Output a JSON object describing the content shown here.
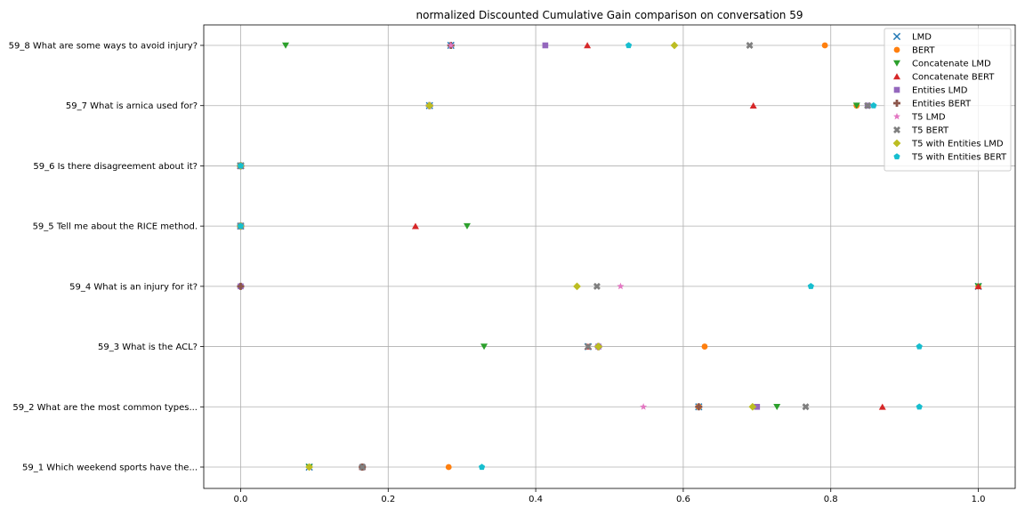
{
  "chart_data": {
    "type": "scatter",
    "title": "normalized Discounted Cumulative Gain comparison on conversation 59",
    "xlabel": "",
    "ylabel": "",
    "xlim": [
      -0.05,
      1.05
    ],
    "xticks": [
      0.0,
      0.2,
      0.4,
      0.6,
      0.8,
      1.0
    ],
    "xtick_labels": [
      "0.0",
      "0.2",
      "0.4",
      "0.6",
      "0.8",
      "1.0"
    ],
    "grid": true,
    "legend_position": "top-right",
    "categories": [
      "59_1 Which weekend sports have the...",
      "59_2 What are the most common types...",
      "59_3 What is the ACL?",
      "59_4 What is an injury for it?",
      "59_5 Tell me about the RICE method.",
      "59_6 Is there disagreement about it?",
      "59_7 What is arnica used for?",
      "59_8 What are some ways to avoid injury?"
    ],
    "series": [
      {
        "name": "LMD",
        "marker": "x",
        "color": "#1f77b4",
        "values": [
          0.093,
          0.621,
          0.471,
          1.0,
          0.0,
          0.0,
          0.256,
          0.285
        ]
      },
      {
        "name": "BERT",
        "marker": "circle",
        "color": "#ff7f0e",
        "values": [
          0.282,
          0.621,
          0.629,
          1.0,
          0.0,
          0.0,
          0.835,
          0.792
        ]
      },
      {
        "name": "Concatenate LMD",
        "marker": "triangle-down",
        "color": "#2ca02c",
        "values": [
          0.093,
          0.727,
          0.33,
          1.0,
          0.307,
          0.0,
          0.835,
          0.061
        ]
      },
      {
        "name": "Concatenate BERT",
        "marker": "triangle-up",
        "color": "#d62728",
        "values": [
          0.165,
          0.87,
          0.471,
          1.0,
          0.237,
          0.0,
          0.695,
          0.47
        ]
      },
      {
        "name": "Entities LMD",
        "marker": "square",
        "color": "#9467bd",
        "values": [
          0.165,
          0.7,
          0.485,
          0.0,
          0.0,
          0.0,
          0.85,
          0.413
        ]
      },
      {
        "name": "Entities BERT",
        "marker": "plus",
        "color": "#8c564b",
        "values": [
          0.165,
          0.621,
          0.485,
          0.0,
          0.0,
          0.0,
          0.256,
          0.285
        ]
      },
      {
        "name": "T5 LMD",
        "marker": "star",
        "color": "#e377c2",
        "values": [
          0.093,
          0.546,
          0.485,
          0.515,
          0.0,
          0.0,
          0.256,
          0.285
        ]
      },
      {
        "name": "T5 BERT",
        "marker": "x-filled",
        "color": "#7f7f7f",
        "values": [
          0.165,
          0.766,
          0.471,
          0.483,
          0.0,
          0.0,
          0.85,
          0.69
        ]
      },
      {
        "name": "T5 with Entities LMD",
        "marker": "diamond",
        "color": "#bcbd22",
        "values": [
          0.093,
          0.694,
          0.485,
          0.456,
          0.0,
          0.0,
          0.256,
          0.588
        ]
      },
      {
        "name": "T5 with Entities BERT",
        "marker": "pentagon",
        "color": "#17becf",
        "values": [
          0.327,
          0.92,
          0.92,
          0.773,
          0.0,
          0.0,
          0.858,
          0.526
        ]
      }
    ]
  }
}
